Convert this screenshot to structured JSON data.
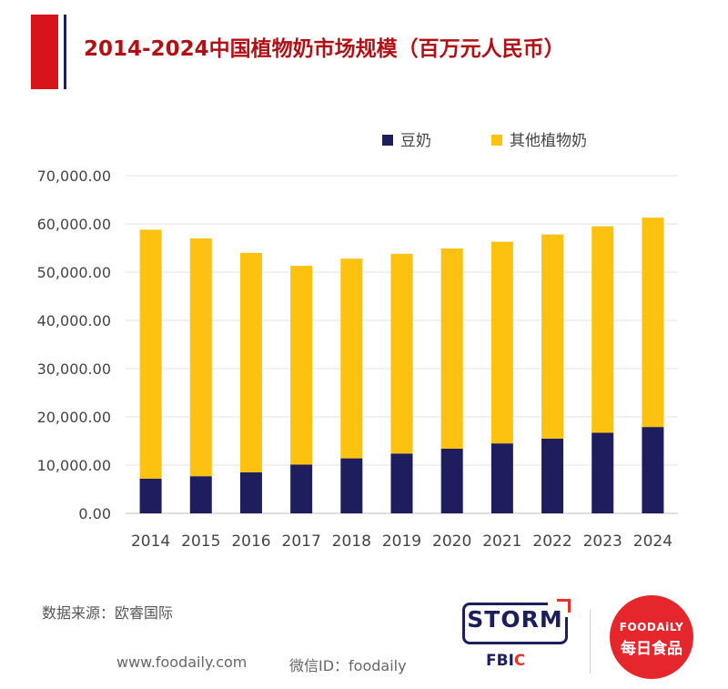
{
  "title": "2014-2024中国植物奶市场规模（百万元人民币）",
  "source": "数据来源：欧睿国际",
  "footer": {
    "website": "www.foodaily.com",
    "wechat": "微信ID：foodaily"
  },
  "logos": {
    "storm": "STORM",
    "fbic_prefix": "FBI",
    "fbic_suffix": "C",
    "foodaily_en": "FOODAiLY",
    "foodaily_cn": "每日食品"
  },
  "colors": {
    "accent_red": "#d7141a",
    "accent_navy": "#1c1f5c",
    "title": "#b11116",
    "soy": "#1e1d5e",
    "other": "#fdc10f",
    "grid": "#e3e3e3",
    "text": "#444444"
  },
  "chart_data": {
    "type": "bar",
    "stacked": true,
    "categories": [
      "2014",
      "2015",
      "2016",
      "2017",
      "2018",
      "2019",
      "2020",
      "2021",
      "2022",
      "2023",
      "2024"
    ],
    "series": [
      {
        "name": "豆奶",
        "color": "#1e1d5e",
        "values": [
          7200,
          7700,
          8500,
          10100,
          11400,
          12400,
          13400,
          14500,
          15500,
          16700,
          17900
        ]
      },
      {
        "name": "其他植物奶",
        "color": "#fdc10f",
        "values": [
          51600,
          49300,
          45500,
          41200,
          41400,
          41400,
          41500,
          41800,
          42300,
          42800,
          43400
        ]
      }
    ],
    "y_ticks": [
      "0.00",
      "10,000.00",
      "20,000.00",
      "30,000.00",
      "40,000.00",
      "50,000.00",
      "60,000.00",
      "70,000.00"
    ],
    "ylim": [
      0,
      70000
    ],
    "grid": true,
    "legend_position": "top-right"
  }
}
